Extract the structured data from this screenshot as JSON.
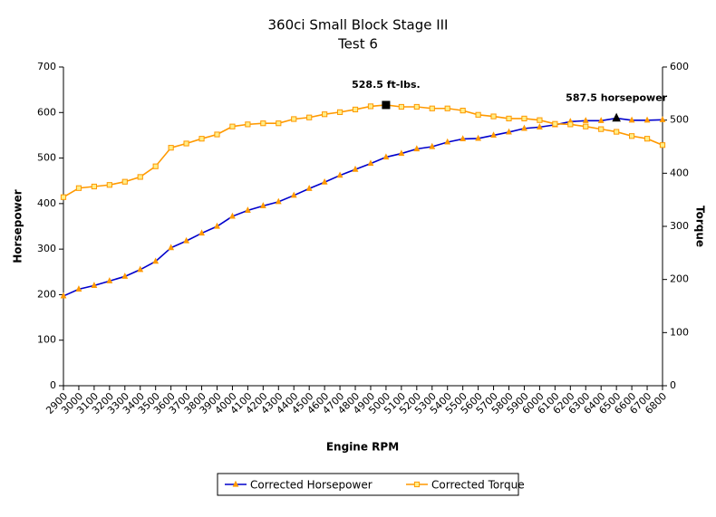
{
  "chart_data": {
    "type": "line",
    "title": "360ci Small Block Stage III",
    "subtitle": "Test 6",
    "x_label": "Engine RPM",
    "y_label": "Horsepower",
    "y2_label": "Torque",
    "categories": [
      2900,
      3000,
      3100,
      3200,
      3300,
      3400,
      3500,
      3600,
      3700,
      3800,
      3900,
      4000,
      4100,
      4200,
      4300,
      4400,
      4500,
      4600,
      4700,
      4800,
      4900,
      5000,
      5100,
      5200,
      5300,
      5400,
      5500,
      5600,
      5700,
      5800,
      5900,
      6000,
      6100,
      6200,
      6300,
      6400,
      6500,
      6600,
      6700,
      6800
    ],
    "series": [
      {
        "name": "Corrected Horsepower",
        "color": "#0000cc",
        "marker_color": "#ff9900",
        "marker": "triangle",
        "values": [
          197,
          212,
          220,
          230,
          240,
          255,
          273,
          303,
          318,
          335,
          350,
          372,
          385,
          395,
          404,
          418,
          433,
          447,
          462,
          475,
          488,
          502,
          510,
          520,
          525,
          535,
          542,
          543,
          550,
          557,
          565,
          568,
          573,
          580,
          582,
          582,
          587.5,
          583,
          583,
          584
        ]
      },
      {
        "name": "Corrected Torque",
        "color": "#ff9900",
        "marker_color": "#ff9900",
        "marker": "square",
        "axis": "y2",
        "values": [
          355,
          372,
          375,
          378,
          384,
          393,
          413,
          448,
          456,
          465,
          473,
          488,
          492,
          494,
          494,
          502,
          505,
          511,
          515,
          520,
          526,
          528.5,
          525,
          525,
          522,
          522,
          518,
          510,
          507,
          503,
          503,
          500,
          493,
          492,
          488,
          483,
          478,
          470,
          465,
          453
        ]
      }
    ],
    "annotations": [
      {
        "text": "528.5 ft-lbs.",
        "x": 5000,
        "y": 528.5,
        "axis": "y2"
      },
      {
        "text": "587.5 horsepower",
        "x": 6500,
        "y": 587.5,
        "axis": "y"
      }
    ],
    "ylim": [
      0,
      700
    ],
    "yticks": [
      0,
      100,
      200,
      300,
      400,
      500,
      600,
      700
    ],
    "y2lim": [
      0,
      600
    ],
    "y2ticks": [
      0,
      100,
      200,
      300,
      400,
      500,
      600
    ],
    "legend": "bottom"
  }
}
